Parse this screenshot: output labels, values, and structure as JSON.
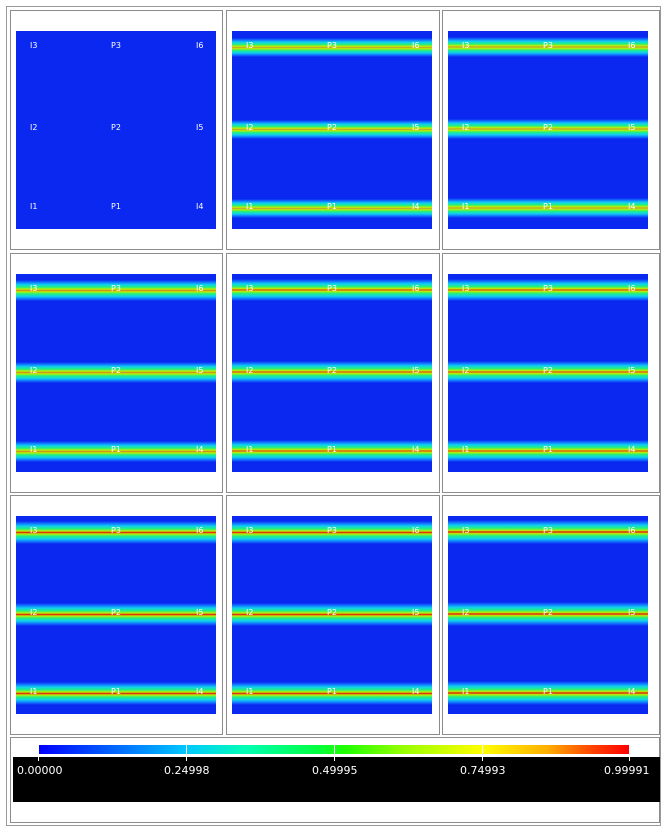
{
  "panels": [
    {
      "labels": {
        "top": [
          "I3",
          "P3",
          "I6"
        ],
        "mid": [
          "I2",
          "P2",
          "I5"
        ],
        "bot": [
          "I1",
          "P1",
          "I4"
        ]
      },
      "intensity": 0.0
    },
    {
      "labels": {
        "top": [
          "I3",
          "P3",
          "I6"
        ],
        "mid": [
          "I2",
          "P2",
          "I5"
        ],
        "bot": [
          "I1",
          "P1",
          "I4"
        ]
      },
      "intensity": 0.62
    },
    {
      "labels": {
        "top": [
          "I3",
          "P3",
          "I6"
        ],
        "mid": [
          "I2",
          "P2",
          "I5"
        ],
        "bot": [
          "I1",
          "P1",
          "I4"
        ]
      },
      "intensity": 0.7
    },
    {
      "labels": {
        "top": [
          "I3",
          "P3",
          "I6"
        ],
        "mid": [
          "I2",
          "P2",
          "I5"
        ],
        "bot": [
          "I1",
          "P1",
          "I4"
        ]
      },
      "intensity": 0.78
    },
    {
      "labels": {
        "top": [
          "I3",
          "P3",
          "I6"
        ],
        "mid": [
          "I2",
          "P2",
          "I5"
        ],
        "bot": [
          "I1",
          "P1",
          "I4"
        ]
      },
      "intensity": 0.84
    },
    {
      "labels": {
        "top": [
          "I3",
          "P3",
          "I6"
        ],
        "mid": [
          "I2",
          "P2",
          "I5"
        ],
        "bot": [
          "I1",
          "P1",
          "I4"
        ]
      },
      "intensity": 0.88
    },
    {
      "labels": {
        "top": [
          "I3",
          "P3",
          "I6"
        ],
        "mid": [
          "I2",
          "P2",
          "I5"
        ],
        "bot": [
          "I1",
          "P1",
          "I4"
        ]
      },
      "intensity": 0.93
    },
    {
      "labels": {
        "top": [
          "I3",
          "P3",
          "I6"
        ],
        "mid": [
          "I2",
          "P2",
          "I5"
        ],
        "bot": [
          "I1",
          "P1",
          "I4"
        ]
      },
      "intensity": 0.96
    },
    {
      "labels": {
        "top": [
          "I3",
          "P3",
          "I6"
        ],
        "mid": [
          "I2",
          "P2",
          "I5"
        ],
        "bot": [
          "I1",
          "P1",
          "I4"
        ]
      },
      "intensity": 1.0
    }
  ],
  "colorbar": {
    "min": "0.00000",
    "ticks": [
      "0.24998",
      "0.49995",
      "0.74993"
    ],
    "max": "0.99991"
  },
  "colors": {
    "background": "#0b28f0",
    "low": "#0000ff",
    "high": "#ff0000"
  }
}
